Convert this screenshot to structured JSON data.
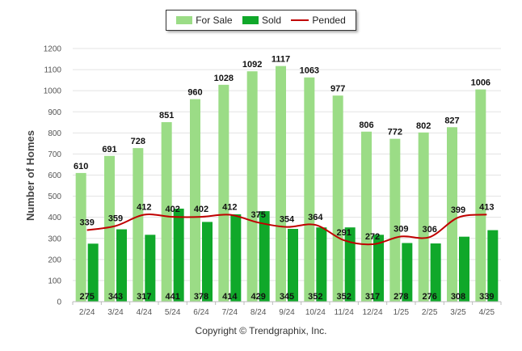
{
  "chart_data": {
    "type": "bar",
    "categories": [
      "2/24",
      "3/24",
      "4/24",
      "5/24",
      "6/24",
      "7/24",
      "8/24",
      "9/24",
      "10/24",
      "11/24",
      "12/24",
      "1/25",
      "2/25",
      "3/25",
      "4/25"
    ],
    "series": [
      {
        "name": "For Sale",
        "kind": "bar",
        "color": "#9bdc86",
        "values": [
          610,
          691,
          728,
          851,
          960,
          1028,
          1092,
          1117,
          1063,
          977,
          806,
          772,
          802,
          827,
          1006
        ]
      },
      {
        "name": "Sold",
        "kind": "bar",
        "color": "#10a82a",
        "values": [
          275,
          343,
          317,
          441,
          378,
          414,
          429,
          345,
          352,
          352,
          317,
          278,
          276,
          308,
          339
        ]
      },
      {
        "name": "Pended",
        "kind": "line",
        "color": "#c00000",
        "values": [
          339,
          359,
          412,
          402,
          402,
          412,
          375,
          354,
          364,
          291,
          272,
          309,
          306,
          399,
          413
        ]
      }
    ],
    "ylabel": "Number of Homes",
    "yticks": [
      0,
      100,
      200,
      300,
      400,
      500,
      600,
      700,
      800,
      900,
      1000,
      1100,
      1200
    ],
    "ylim": [
      0,
      1200
    ],
    "grid": true,
    "legend_position": "top-center"
  },
  "footer": {
    "copyright": "Copyright © Trendgraphix, Inc."
  }
}
